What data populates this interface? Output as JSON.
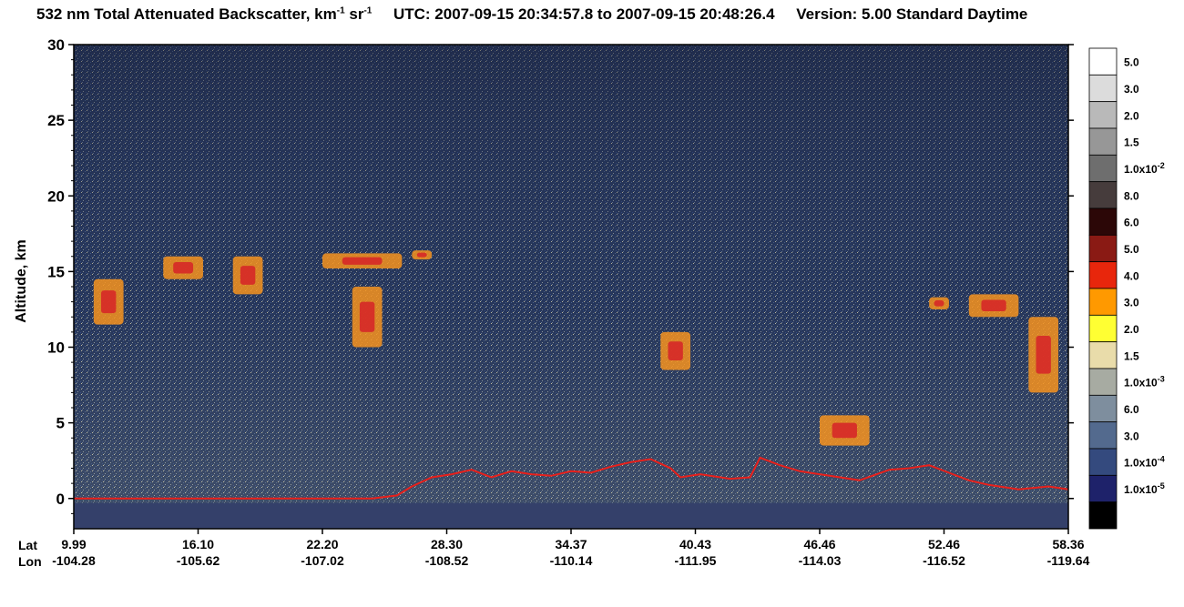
{
  "title": {
    "main": "532 nm Total Attenuated Backscatter, km",
    "unit_exp1": "-1",
    "unit_sr": " sr",
    "unit_exp2": "-1",
    "utc": "UTC:  2007-09-15 20:34:57.8  to  2007-09-15 20:48:26.4",
    "version": "Version: 5.00  Standard  Daytime"
  },
  "axis_labels": {
    "y": "Altitude, km",
    "lat_row_label": "Lat",
    "lon_row_label": "Lon"
  },
  "colors": {
    "background_sky": "#2a3a5e",
    "cloud_orange": "#f7931e",
    "cloud_red": "#d62828",
    "surface_red": "#e8201b",
    "noise_yellow": "#f2e58a"
  },
  "chart_data": {
    "type": "heatmap",
    "title": "532 nm Total Attenuated Backscatter, km-1 sr-1",
    "ylabel": "Altitude, km",
    "ylim": [
      -2,
      30
    ],
    "y_ticks": [
      0,
      5,
      10,
      15,
      20,
      25,
      30
    ],
    "x_ticks": [
      {
        "lat": "9.99",
        "lon": "-104.28"
      },
      {
        "lat": "16.10",
        "lon": "-105.62"
      },
      {
        "lat": "22.20",
        "lon": "-107.02"
      },
      {
        "lat": "28.30",
        "lon": "-108.52"
      },
      {
        "lat": "34.37",
        "lon": "-110.14"
      },
      {
        "lat": "40.43",
        "lon": "-111.95"
      },
      {
        "lat": "46.46",
        "lon": "-114.03"
      },
      {
        "lat": "52.46",
        "lon": "-116.52"
      },
      {
        "lat": "58.36",
        "lon": "-119.64"
      }
    ],
    "colorbar": [
      {
        "label": "5.0",
        "exp": "",
        "color": "#ffffff"
      },
      {
        "label": "3.0",
        "exp": "",
        "color": "#dcdcdc"
      },
      {
        "label": "2.0",
        "exp": "",
        "color": "#b9b9b9"
      },
      {
        "label": "1.5",
        "exp": "",
        "color": "#979797"
      },
      {
        "label": "1.0x10",
        "exp": "-2",
        "color": "#6e6e6e"
      },
      {
        "label": "8.0",
        "exp": "",
        "color": "#463c3c"
      },
      {
        "label": "6.0",
        "exp": "",
        "color": "#2c0707"
      },
      {
        "label": "5.0",
        "exp": "",
        "color": "#8a1a14"
      },
      {
        "label": "4.0",
        "exp": "",
        "color": "#e8260c"
      },
      {
        "label": "3.0",
        "exp": "",
        "color": "#ff9900"
      },
      {
        "label": "2.0",
        "exp": "",
        "color": "#ffff33"
      },
      {
        "label": "1.5",
        "exp": "",
        "color": "#e9dcaa"
      },
      {
        "label": "1.0x10",
        "exp": "-3",
        "color": "#a7aba2"
      },
      {
        "label": "6.0",
        "exp": "",
        "color": "#7e8e9e"
      },
      {
        "label": "3.0",
        "exp": "",
        "color": "#536a8e"
      },
      {
        "label": "1.0x10",
        "exp": "-4",
        "color": "#344a7e"
      },
      {
        "label": "1.0x10",
        "exp": "-5",
        "color": "#1e226a"
      },
      {
        "label": "",
        "exp": "",
        "color": "#000000"
      }
    ],
    "surface_line": [
      {
        "x": 0.0,
        "alt": 0.0
      },
      {
        "x": 0.3,
        "alt": 0.0
      },
      {
        "x": 0.325,
        "alt": 0.2
      },
      {
        "x": 0.34,
        "alt": 0.8
      },
      {
        "x": 0.36,
        "alt": 1.4
      },
      {
        "x": 0.38,
        "alt": 1.6
      },
      {
        "x": 0.4,
        "alt": 1.9
      },
      {
        "x": 0.42,
        "alt": 1.4
      },
      {
        "x": 0.44,
        "alt": 1.8
      },
      {
        "x": 0.46,
        "alt": 1.6
      },
      {
        "x": 0.48,
        "alt": 1.5
      },
      {
        "x": 0.5,
        "alt": 1.8
      },
      {
        "x": 0.52,
        "alt": 1.7
      },
      {
        "x": 0.54,
        "alt": 2.1
      },
      {
        "x": 0.56,
        "alt": 2.4
      },
      {
        "x": 0.58,
        "alt": 2.6
      },
      {
        "x": 0.6,
        "alt": 2.0
      },
      {
        "x": 0.61,
        "alt": 1.4
      },
      {
        "x": 0.63,
        "alt": 1.6
      },
      {
        "x": 0.66,
        "alt": 1.3
      },
      {
        "x": 0.68,
        "alt": 1.4
      },
      {
        "x": 0.69,
        "alt": 2.7
      },
      {
        "x": 0.71,
        "alt": 2.2
      },
      {
        "x": 0.73,
        "alt": 1.8
      },
      {
        "x": 0.76,
        "alt": 1.5
      },
      {
        "x": 0.79,
        "alt": 1.2
      },
      {
        "x": 0.82,
        "alt": 1.9
      },
      {
        "x": 0.84,
        "alt": 2.0
      },
      {
        "x": 0.86,
        "alt": 2.2
      },
      {
        "x": 0.88,
        "alt": 1.7
      },
      {
        "x": 0.9,
        "alt": 1.2
      },
      {
        "x": 0.92,
        "alt": 0.9
      },
      {
        "x": 0.95,
        "alt": 0.6
      },
      {
        "x": 0.98,
        "alt": 0.8
      },
      {
        "x": 1.0,
        "alt": 0.6
      }
    ],
    "cloud_patches": [
      {
        "x": 0.02,
        "alt": 11.5,
        "w": 0.03,
        "h": 3.0
      },
      {
        "x": 0.09,
        "alt": 14.5,
        "w": 0.04,
        "h": 1.5
      },
      {
        "x": 0.16,
        "alt": 13.5,
        "w": 0.03,
        "h": 2.5
      },
      {
        "x": 0.25,
        "alt": 15.2,
        "w": 0.08,
        "h": 1.0
      },
      {
        "x": 0.28,
        "alt": 10.0,
        "w": 0.03,
        "h": 4.0
      },
      {
        "x": 0.34,
        "alt": 15.8,
        "w": 0.02,
        "h": 0.6
      },
      {
        "x": 0.59,
        "alt": 8.5,
        "w": 0.03,
        "h": 2.5
      },
      {
        "x": 0.75,
        "alt": 3.5,
        "w": 0.05,
        "h": 2.0
      },
      {
        "x": 0.86,
        "alt": 12.5,
        "w": 0.02,
        "h": 0.8
      },
      {
        "x": 0.9,
        "alt": 12.0,
        "w": 0.05,
        "h": 1.5
      },
      {
        "x": 0.96,
        "alt": 7.0,
        "w": 0.03,
        "h": 5.0
      }
    ]
  }
}
